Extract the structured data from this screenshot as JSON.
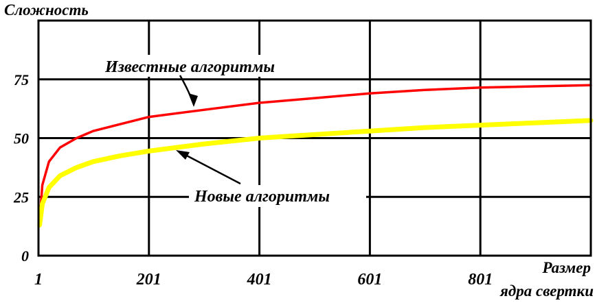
{
  "chart_data": {
    "type": "line",
    "ylabel": "Сложность",
    "xlabel": [
      "Размер",
      "ядра свертки"
    ],
    "xlim": [
      1,
      1001
    ],
    "ylim": [
      0,
      100
    ],
    "grid": true,
    "x_ticks": [
      1,
      201,
      401,
      601,
      801
    ],
    "y_ticks": [
      0,
      25,
      50,
      75
    ],
    "series": [
      {
        "name": "Известные алгоритмы",
        "color": "#ff0000",
        "x": [
          3,
          8,
          20,
          40,
          70,
          100,
          150,
          201,
          300,
          401,
          500,
          601,
          700,
          801,
          900,
          1001
        ],
        "y": [
          14,
          30,
          40,
          46,
          50,
          53,
          56,
          59,
          62,
          65,
          67,
          69,
          70.5,
          71.5,
          72,
          72.5
        ]
      },
      {
        "name": "Новые алгоритмы",
        "color": "#ffff00",
        "x": [
          3,
          8,
          20,
          40,
          70,
          100,
          150,
          201,
          300,
          401,
          500,
          601,
          700,
          801,
          900,
          1001
        ],
        "y": [
          13,
          22,
          29,
          34,
          37.5,
          40,
          42.5,
          44.5,
          47.5,
          50,
          51.5,
          53,
          54.5,
          55.5,
          56.5,
          57.5
        ]
      }
    ]
  }
}
